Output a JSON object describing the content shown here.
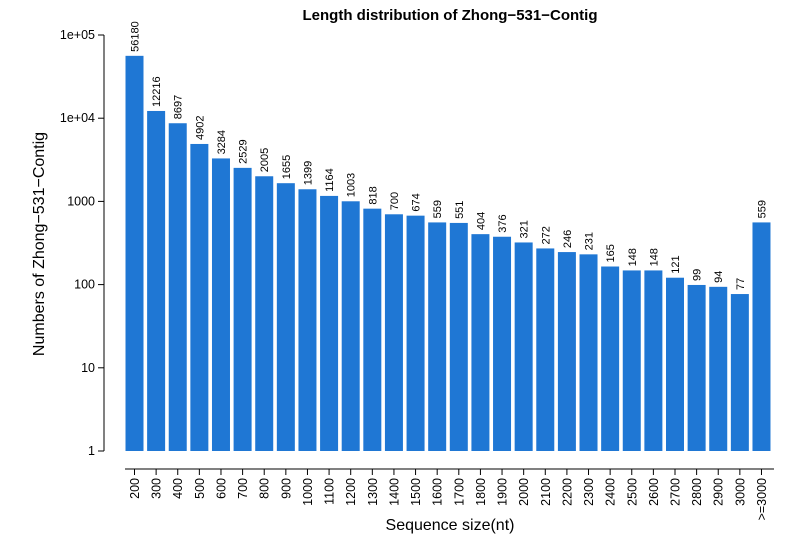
{
  "chart_data": {
    "type": "bar",
    "title": "Length distribution of Zhong−531−Contig",
    "xlabel": "Sequence size(nt)",
    "ylabel": "Numbers of Zhong−531−Contig",
    "yscale": "log",
    "ylim": [
      1,
      100000
    ],
    "yticks": [
      "1",
      "10",
      "100",
      "1000",
      "1e+04",
      "1e+05"
    ],
    "bar_color": "#1f77d4",
    "grid": false,
    "categories": [
      "200",
      "300",
      "400",
      "500",
      "600",
      "700",
      "800",
      "900",
      "1000",
      "1100",
      "1200",
      "1300",
      "1400",
      "1500",
      "1600",
      "1700",
      "1800",
      "1900",
      "2000",
      "2100",
      "2200",
      "2300",
      "2400",
      "2500",
      "2600",
      "2700",
      "2800",
      "2900",
      "3000",
      ">=3000"
    ],
    "values": [
      56180,
      12216,
      8697,
      4902,
      3284,
      2529,
      2005,
      1655,
      1399,
      1164,
      1003,
      818,
      700,
      674,
      559,
      551,
      404,
      376,
      321,
      272,
      246,
      231,
      165,
      148,
      148,
      121,
      99,
      94,
      77,
      559
    ]
  }
}
